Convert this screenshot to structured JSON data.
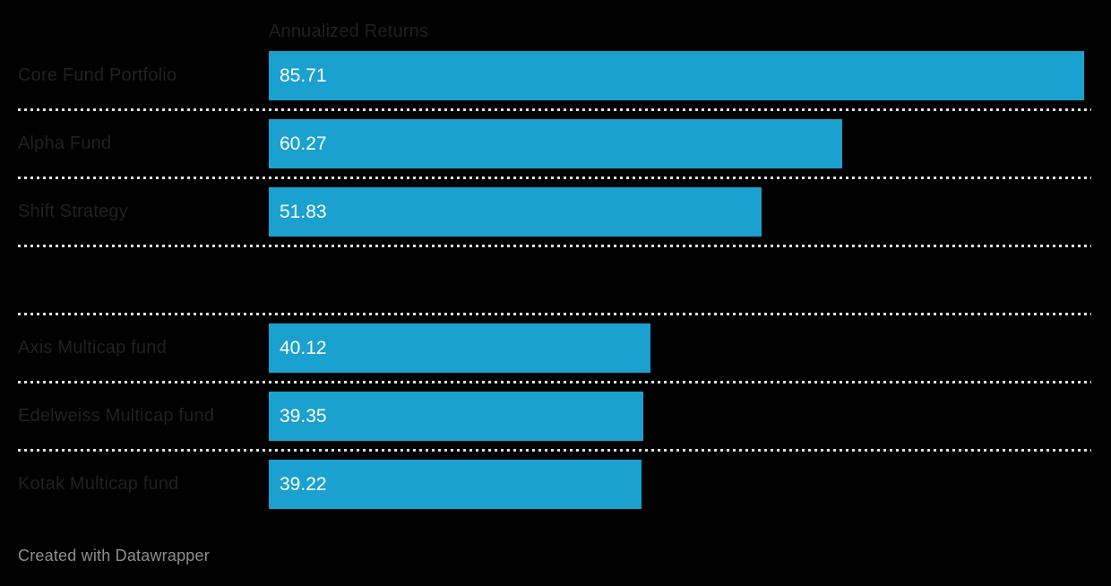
{
  "page": {
    "background_color": "#000000"
  },
  "chart": {
    "column_header": "Annualized Returns",
    "footer_attribution": "Created with Datawrapper",
    "axis_max": 85.71,
    "colors": {
      "background": "#000000",
      "bar": "#1aa1cf",
      "label": "#212121",
      "value": "#ffffff",
      "separator": "#e0e0e0",
      "footer": "#8e8e8e"
    },
    "rows": [
      {
        "label": "Core Fund Portfolio",
        "value": 85.71,
        "value_label": "85.71"
      },
      {
        "label": "Alpha Fund",
        "value": 60.27,
        "value_label": "60.27"
      },
      {
        "label": "Shift Strategy",
        "value": 51.83,
        "value_label": "51.83"
      },
      {
        "label": "",
        "value": null,
        "value_label": ""
      },
      {
        "label": "Axis Multicap fund",
        "value": 40.12,
        "value_label": "40.12"
      },
      {
        "label": "Edelweiss Multicap fund",
        "value": 39.35,
        "value_label": "39.35"
      },
      {
        "label": "Kotak Multicap fund",
        "value": 39.22,
        "value_label": "39.22"
      }
    ]
  },
  "chart_data": {
    "type": "bar",
    "orientation": "horizontal",
    "title": "Annualized Returns",
    "categories": [
      "Core Fund Portfolio",
      "Alpha Fund",
      "Shift Strategy",
      "",
      "Axis Multicap fund",
      "Edelweiss Multicap fund",
      "Kotak Multicap fund"
    ],
    "values": [
      85.71,
      60.27,
      51.83,
      null,
      40.12,
      39.35,
      39.22
    ],
    "value_labels": [
      "85.71",
      "60.27",
      "51.83",
      "",
      "40.12",
      "39.35",
      "39.22"
    ],
    "xlim": [
      0,
      85.71
    ],
    "grid": false,
    "legend": false,
    "bar_color": "#1aa1cf",
    "value_labels_inside_bars": true,
    "row_separators": "dotted",
    "attribution": "Created with Datawrapper"
  }
}
